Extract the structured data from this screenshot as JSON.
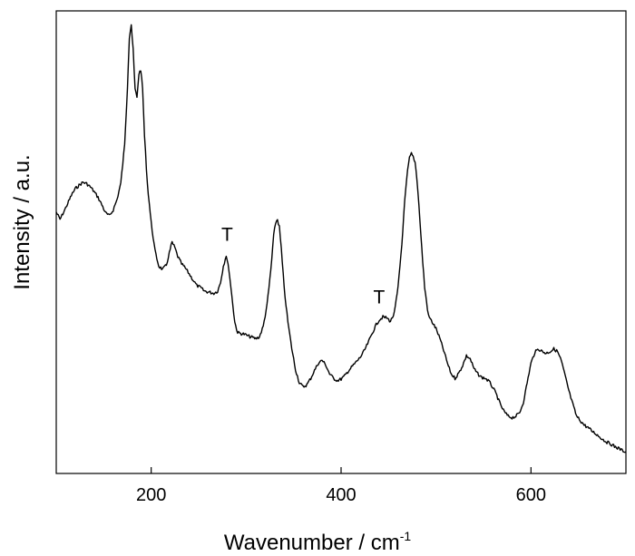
{
  "chart_data": {
    "type": "line",
    "title": "",
    "xlabel": "Wavenumber / cm",
    "xlabel_superscript": "-1",
    "ylabel": "Intensity / a.u.",
    "xlim": [
      100,
      700
    ],
    "ylim": [
      0,
      1
    ],
    "x_ticks": [
      200,
      400,
      600
    ],
    "y_ticks": [],
    "grid": false,
    "legend": "none",
    "line_color": "#000000",
    "annotations": [
      {
        "text": "T",
        "x": 280,
        "y": 0.472
      },
      {
        "text": "T",
        "x": 440,
        "y": 0.327
      }
    ],
    "series": [
      {
        "x": [
          100,
          104,
          110,
          116,
          120,
          124,
          128,
          132,
          136,
          140,
          144,
          148,
          152,
          156,
          160,
          164,
          168,
          172,
          175,
          177,
          179,
          181,
          183,
          185,
          187,
          189,
          191,
          193,
          196,
          200,
          204,
          208,
          212,
          216,
          219,
          222,
          225,
          228,
          232,
          236,
          240,
          244,
          248,
          252,
          256,
          260,
          264,
          266,
          270,
          273,
          276,
          279,
          282,
          285,
          288,
          291,
          294,
          298,
          302,
          306,
          310,
          314,
          318,
          322,
          326,
          329,
          331,
          333,
          335,
          337,
          340,
          344,
          348,
          352,
          356,
          360,
          364,
          368,
          372,
          376,
          380,
          384,
          388,
          392,
          396,
          400,
          404,
          408,
          412,
          416,
          420,
          424,
          428,
          432,
          436,
          440,
          444,
          448,
          452,
          456,
          460,
          464,
          467,
          470,
          472,
          474,
          476,
          478,
          480,
          482,
          485,
          488,
          492,
          496,
          500,
          504,
          508,
          512,
          516,
          520,
          524,
          528,
          532,
          536,
          540,
          544,
          548,
          552,
          556,
          560,
          564,
          568,
          572,
          576,
          580,
          584,
          588,
          592,
          596,
          600,
          604,
          608,
          612,
          616,
          620,
          624,
          628,
          632,
          636,
          640,
          644,
          648,
          652,
          656,
          660,
          664,
          668,
          672,
          676,
          680,
          684,
          688,
          692,
          696,
          700
        ],
        "y": [
          0.555,
          0.538,
          0.565,
          0.594,
          0.609,
          0.617,
          0.624,
          0.621,
          0.613,
          0.602,
          0.589,
          0.572,
          0.553,
          0.546,
          0.56,
          0.584,
          0.622,
          0.71,
          0.845,
          0.96,
          0.99,
          0.93,
          0.84,
          0.82,
          0.875,
          0.885,
          0.84,
          0.73,
          0.62,
          0.53,
          0.465,
          0.43,
          0.422,
          0.432,
          0.46,
          0.485,
          0.472,
          0.452,
          0.435,
          0.425,
          0.412,
          0.398,
          0.385,
          0.38,
          0.372,
          0.37,
          0.368,
          0.367,
          0.372,
          0.392,
          0.43,
          0.455,
          0.42,
          0.36,
          0.3,
          0.276,
          0.274,
          0.272,
          0.268,
          0.265,
          0.262,
          0.266,
          0.29,
          0.34,
          0.42,
          0.5,
          0.53,
          0.538,
          0.52,
          0.47,
          0.38,
          0.3,
          0.24,
          0.19,
          0.16,
          0.15,
          0.155,
          0.17,
          0.188,
          0.205,
          0.212,
          0.2,
          0.18,
          0.17,
          0.165,
          0.168,
          0.176,
          0.188,
          0.198,
          0.208,
          0.218,
          0.232,
          0.25,
          0.27,
          0.29,
          0.305,
          0.312,
          0.31,
          0.302,
          0.32,
          0.38,
          0.48,
          0.58,
          0.65,
          0.68,
          0.69,
          0.683,
          0.67,
          0.63,
          0.57,
          0.47,
          0.38,
          0.315,
          0.3,
          0.285,
          0.262,
          0.235,
          0.205,
          0.18,
          0.17,
          0.182,
          0.2,
          0.222,
          0.215,
          0.192,
          0.18,
          0.172,
          0.17,
          0.162,
          0.148,
          0.13,
          0.108,
          0.092,
          0.082,
          0.079,
          0.082,
          0.09,
          0.115,
          0.16,
          0.205,
          0.23,
          0.238,
          0.232,
          0.228,
          0.232,
          0.238,
          0.232,
          0.21,
          0.175,
          0.14,
          0.11,
          0.082,
          0.072,
          0.062,
          0.056,
          0.048,
          0.042,
          0.035,
          0.028,
          0.022,
          0.018,
          0.012,
          0.008,
          0.003,
          0.0
        ]
      }
    ]
  }
}
